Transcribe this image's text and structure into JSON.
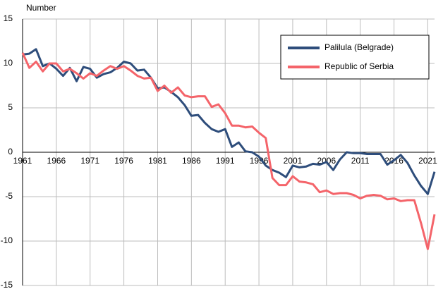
{
  "chart_data": {
    "type": "line",
    "y_label": "Number",
    "x": [
      1961,
      1962,
      1963,
      1964,
      1965,
      1966,
      1967,
      1968,
      1969,
      1970,
      1971,
      1972,
      1973,
      1974,
      1975,
      1976,
      1977,
      1978,
      1979,
      1980,
      1981,
      1982,
      1983,
      1984,
      1985,
      1986,
      1987,
      1988,
      1989,
      1990,
      1991,
      1992,
      1993,
      1994,
      1995,
      1996,
      1997,
      1998,
      1999,
      2000,
      2001,
      2002,
      2003,
      2004,
      2005,
      2006,
      2007,
      2008,
      2009,
      2010,
      2011,
      2012,
      2013,
      2014,
      2015,
      2016,
      2017,
      2018,
      2019,
      2020,
      2021,
      2022
    ],
    "series": [
      {
        "name": "Palilula (Belgrade)",
        "color": "#2e4d7b",
        "values": [
          11,
          11.1,
          11.6,
          9.7,
          10,
          9.4,
          8.6,
          9.5,
          8.0,
          9.6,
          9.4,
          8.4,
          8.8,
          9.0,
          9.5,
          10.2,
          10.0,
          9.2,
          9.3,
          8.4,
          7.2,
          7.3,
          6.8,
          6.2,
          5.3,
          4.1,
          4.2,
          3.3,
          2.6,
          2.3,
          2.6,
          0.6,
          1.1,
          0.1,
          0.0,
          -0.5,
          -1.5,
          -2.0,
          -2.3,
          -2.8,
          -1.5,
          -1.7,
          -1.6,
          -1.3,
          -1.4,
          -1.1,
          -2.0,
          -0.8,
          0.0,
          -0.1,
          -0.1,
          -0.2,
          -0.2,
          -0.2,
          -1.4,
          -0.9,
          -0.3,
          -1.2,
          -2.6,
          -3.8,
          -4.7,
          -2.2
        ]
      },
      {
        "name": "Republic of Serbia",
        "color": "#f4646a",
        "values": [
          11.2,
          9.5,
          10.2,
          9.1,
          10,
          10,
          9.1,
          9.4,
          8.9,
          8.3,
          8.9,
          8.6,
          9.2,
          9.7,
          9.4,
          9.7,
          9.2,
          8.6,
          8.3,
          8.4,
          6.9,
          7.5,
          6.7,
          7.3,
          6.4,
          6.2,
          6.3,
          6.3,
          5.1,
          5.4,
          4.4,
          3.0,
          3.0,
          2.8,
          2.9,
          2.2,
          1.6,
          -2.9,
          -3.7,
          -3.7,
          -2.7,
          -3.3,
          -3.4,
          -3.6,
          -4.5,
          -4.3,
          -4.7,
          -4.6,
          -4.6,
          -4.8,
          -5.2,
          -4.9,
          -4.8,
          -4.9,
          -5.3,
          -5.2,
          -5.5,
          -5.4,
          -5.4,
          -8.0,
          -10.9,
          -7.0
        ]
      }
    ],
    "xlim": [
      1961,
      2022
    ],
    "xticks": [
      1961,
      1966,
      1971,
      1976,
      1981,
      1986,
      1991,
      1996,
      2001,
      2006,
      2011,
      2016,
      2021
    ],
    "ylim": [
      -15,
      15
    ],
    "yticks": [
      -15,
      -10,
      -5,
      0,
      5,
      10,
      15
    ],
    "grid": true,
    "legend": "upper right"
  }
}
